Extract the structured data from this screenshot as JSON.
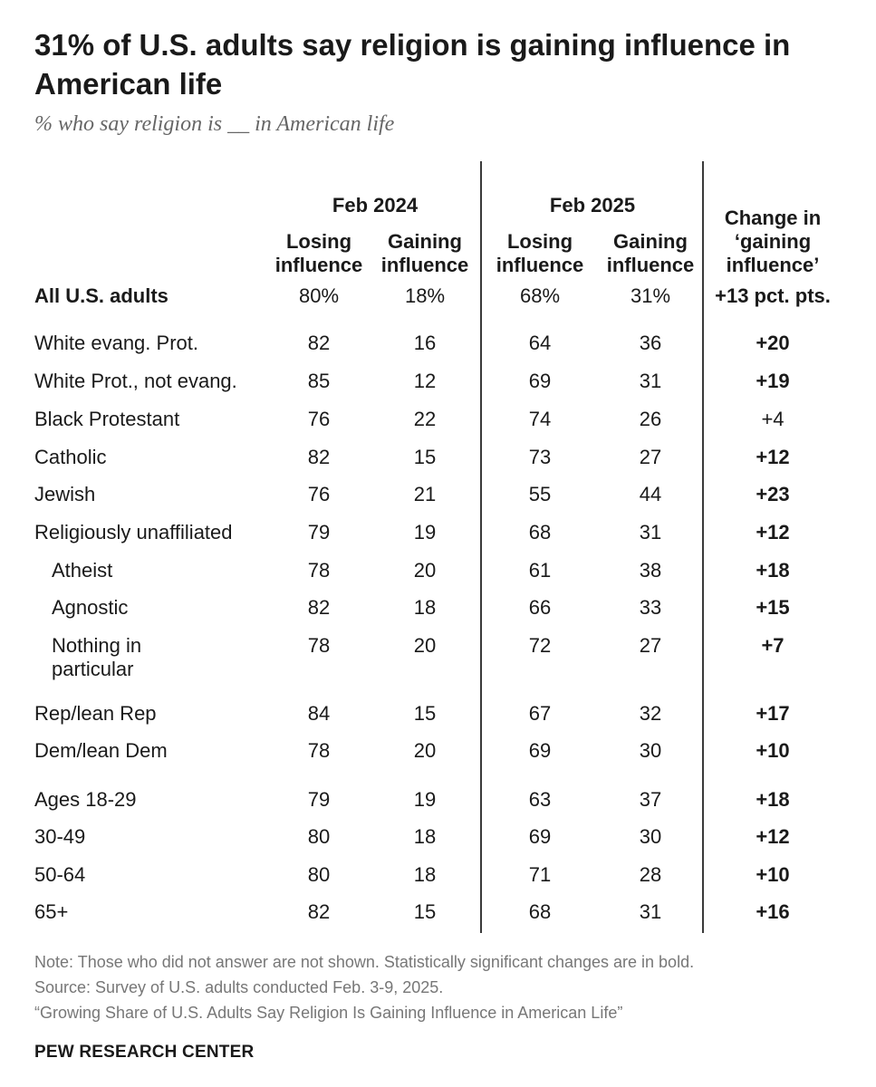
{
  "title": "31% of U.S. adults say religion is gaining influence in American life",
  "subtitle": "% who say religion is __ in American life",
  "chart_data": {
    "type": "table",
    "periods": [
      "Feb 2024",
      "Feb 2025"
    ],
    "column_labels": [
      "Losing influence",
      "Gaining influence"
    ],
    "change_header": "Change in ‘gaining influence’",
    "total_row": {
      "label": "All U.S. adults",
      "values": [
        "80%",
        "18%",
        "68%",
        "31%"
      ],
      "change": "+13 pct. pts.",
      "bold": true
    },
    "rows": [
      {
        "label": "White evang. Prot.",
        "values": [
          82,
          16,
          64,
          36
        ],
        "change": "+20",
        "significant": true,
        "indent": false
      },
      {
        "label": "White Prot., not evang.",
        "values": [
          85,
          12,
          69,
          31
        ],
        "change": "+19",
        "significant": true,
        "indent": false
      },
      {
        "label": "Black Protestant",
        "values": [
          76,
          22,
          74,
          26
        ],
        "change": "+4",
        "significant": false,
        "indent": false
      },
      {
        "label": "Catholic",
        "values": [
          82,
          15,
          73,
          27
        ],
        "change": "+12",
        "significant": true,
        "indent": false
      },
      {
        "label": "Jewish",
        "values": [
          76,
          21,
          55,
          44
        ],
        "change": "+23",
        "significant": true,
        "indent": false
      },
      {
        "label": "Religiously unaffiliated",
        "values": [
          79,
          19,
          68,
          31
        ],
        "change": "+12",
        "significant": true,
        "indent": false
      },
      {
        "label": "Atheist",
        "values": [
          78,
          20,
          61,
          38
        ],
        "change": "+18",
        "significant": true,
        "indent": true
      },
      {
        "label": "Agnostic",
        "values": [
          82,
          18,
          66,
          33
        ],
        "change": "+15",
        "significant": true,
        "indent": true
      },
      {
        "label": "Nothing in particular",
        "values": [
          78,
          20,
          72,
          27
        ],
        "change": "+7",
        "significant": true,
        "indent": true
      },
      {
        "label": "Rep/lean Rep",
        "values": [
          84,
          15,
          67,
          32
        ],
        "change": "+17",
        "significant": true,
        "indent": false
      },
      {
        "label": "Dem/lean Dem",
        "values": [
          78,
          20,
          69,
          30
        ],
        "change": "+10",
        "significant": true,
        "indent": false
      },
      {
        "label": "Ages 18-29",
        "values": [
          79,
          19,
          63,
          37
        ],
        "change": "+18",
        "significant": true,
        "indent": false
      },
      {
        "label": "30-49",
        "values": [
          80,
          18,
          69,
          30
        ],
        "change": "+12",
        "significant": true,
        "indent": false
      },
      {
        "label": "50-64",
        "values": [
          80,
          18,
          71,
          28
        ],
        "change": "+10",
        "significant": true,
        "indent": false
      },
      {
        "label": "65+",
        "values": [
          82,
          15,
          68,
          31
        ],
        "change": "+16",
        "significant": true,
        "indent": false
      }
    ]
  },
  "notes": [
    "Note: Those who did not answer are not shown. Statistically significant changes are in bold.",
    "Source: Survey of U.S. adults conducted Feb. 3-9, 2025.",
    "“Growing Share of U.S. Adults Say Religion Is Gaining Influence in American Life”"
  ],
  "brand": "PEW RESEARCH CENTER"
}
